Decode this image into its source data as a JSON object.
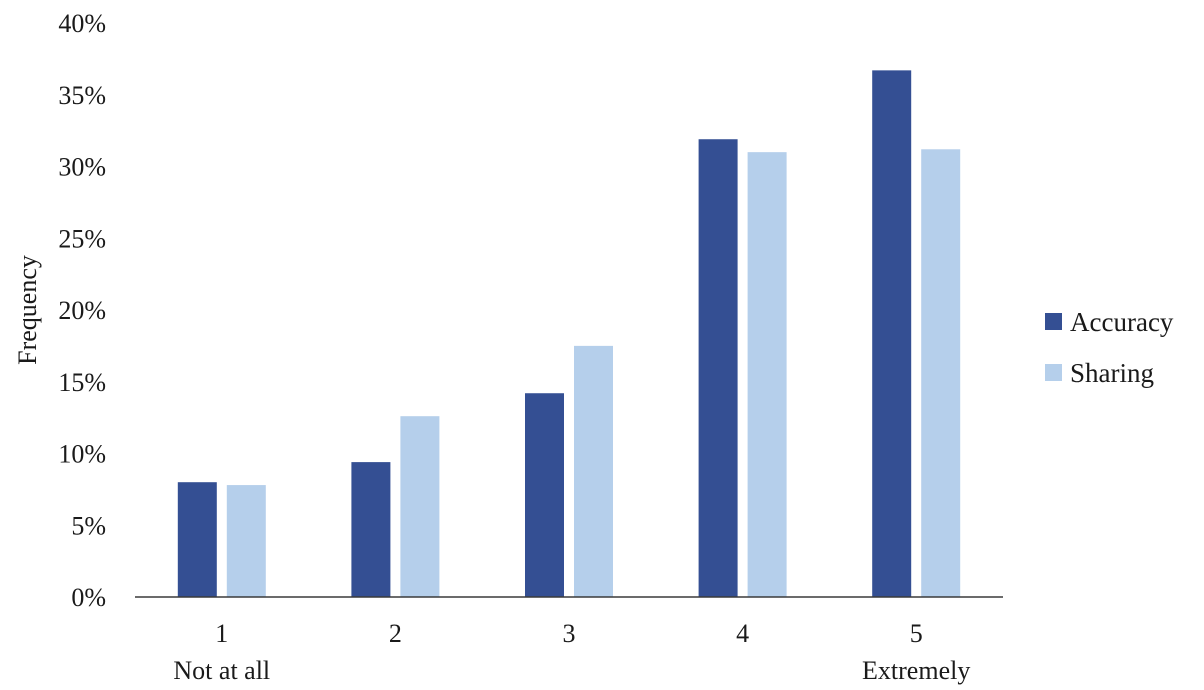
{
  "chart_data": {
    "type": "bar",
    "categories": [
      "1",
      "2",
      "3",
      "4",
      "5"
    ],
    "category_sublabels": [
      "Not at all",
      "",
      "",
      "",
      "Extremely"
    ],
    "series": [
      {
        "name": "Accuracy",
        "values": [
          8.0,
          9.4,
          14.2,
          31.9,
          36.7
        ],
        "color": "#344f93"
      },
      {
        "name": "Sharing",
        "values": [
          7.8,
          12.6,
          17.5,
          31.0,
          31.2
        ],
        "color": "#b5cfeb"
      }
    ],
    "yticks": [
      "0%",
      "5%",
      "10%",
      "15%",
      "20%",
      "25%",
      "30%",
      "35%",
      "40%"
    ],
    "ylim": [
      0,
      40
    ],
    "ylabel": "Frequency",
    "xlabel": "",
    "grid": false,
    "legend_position": "right"
  }
}
